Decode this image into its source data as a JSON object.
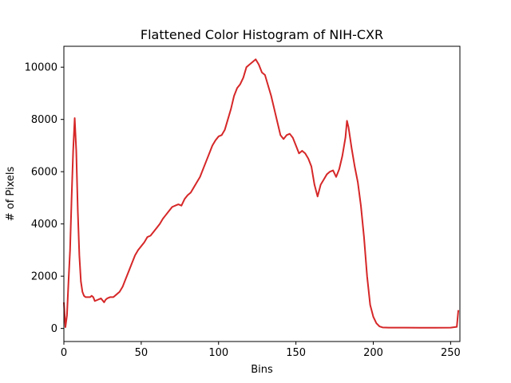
{
  "chart_data": {
    "type": "line",
    "title": "Flattened Color Histogram of NIH-CXR",
    "xlabel": "Bins",
    "ylabel": "# of Pixels",
    "xlim": [
      0,
      256
    ],
    "ylim": [
      -500,
      10800
    ],
    "xticks": [
      0,
      50,
      100,
      150,
      200,
      250
    ],
    "yticks": [
      0,
      2000,
      4000,
      6000,
      8000,
      10000
    ],
    "grid": false,
    "series": [
      {
        "color": "#d62728",
        "x": [
          0,
          1,
          2,
          3,
          4,
          5,
          6,
          7,
          8,
          9,
          10,
          11,
          12,
          13,
          14,
          15,
          16,
          17,
          18,
          19,
          20,
          22,
          24,
          26,
          27,
          28,
          30,
          32,
          34,
          36,
          38,
          40,
          42,
          44,
          46,
          48,
          50,
          52,
          54,
          56,
          58,
          60,
          62,
          64,
          66,
          68,
          70,
          72,
          74,
          76,
          78,
          80,
          82,
          84,
          86,
          88,
          90,
          92,
          94,
          96,
          98,
          100,
          102,
          104,
          106,
          108,
          110,
          112,
          114,
          116,
          118,
          120,
          122,
          124,
          126,
          128,
          130,
          132,
          134,
          136,
          138,
          140,
          142,
          144,
          146,
          148,
          150,
          152,
          154,
          156,
          158,
          160,
          162,
          164,
          166,
          168,
          170,
          172,
          174,
          176,
          178,
          180,
          182,
          183,
          184,
          186,
          188,
          190,
          192,
          194,
          196,
          198,
          200,
          202,
          204,
          206,
          210,
          220,
          230,
          240,
          250,
          254,
          255
        ],
        "y": [
          1000,
          50,
          500,
          1800,
          3000,
          5000,
          6800,
          8050,
          6800,
          4500,
          2800,
          1800,
          1400,
          1250,
          1200,
          1200,
          1200,
          1200,
          1250,
          1200,
          1050,
          1100,
          1150,
          1000,
          1100,
          1150,
          1200,
          1200,
          1300,
          1400,
          1600,
          1900,
          2200,
          2500,
          2800,
          3000,
          3150,
          3300,
          3500,
          3550,
          3700,
          3850,
          4000,
          4200,
          4350,
          4500,
          4650,
          4700,
          4750,
          4700,
          4950,
          5100,
          5200,
          5400,
          5600,
          5800,
          6100,
          6400,
          6700,
          7000,
          7200,
          7350,
          7400,
          7600,
          8000,
          8400,
          8900,
          9200,
          9350,
          9600,
          10000,
          10100,
          10200,
          10300,
          10100,
          9800,
          9700,
          9300,
          8900,
          8400,
          7900,
          7400,
          7250,
          7400,
          7450,
          7300,
          7000,
          6700,
          6800,
          6700,
          6500,
          6200,
          5500,
          5050,
          5500,
          5700,
          5900,
          6000,
          6050,
          5800,
          6100,
          6600,
          7300,
          7950,
          7700,
          6900,
          6200,
          5600,
          4700,
          3500,
          2000,
          900,
          450,
          200,
          80,
          40,
          30,
          30,
          25,
          25,
          30,
          60,
          700
        ]
      }
    ]
  }
}
